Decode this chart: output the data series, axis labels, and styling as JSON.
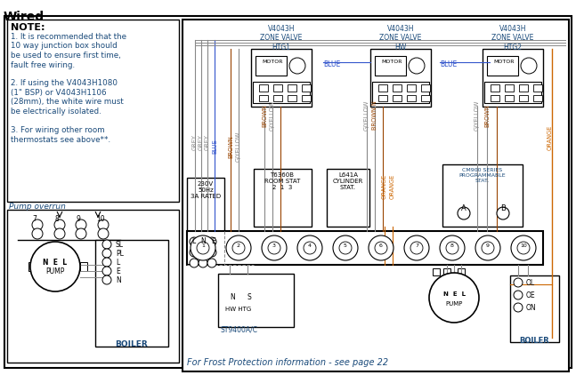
{
  "title": "Wired",
  "bg_color": "#ffffff",
  "note_header": "NOTE:",
  "note_lines": [
    "1. It is recommended that the",
    "10 way junction box should",
    "be used to ensure first time,",
    "fault free wiring.",
    "",
    "2. If using the V4043H1080",
    "(1\" BSP) or V4043H1106",
    "(28mm), the white wire must",
    "be electrically isolated.",
    "",
    "3. For wiring other room",
    "thermostats see above**."
  ],
  "pump_overrun": "Pump overrun",
  "frost_text": "For Frost Protection information - see page 22",
  "valve1_label": "V4043H\nZONE VALVE\nHTG1",
  "valve2_label": "V4043H\nZONE VALVE\nHW",
  "valve3_label": "V4043H\nZONE VALVE\nHTG2",
  "mains_label": "230V\n50Hz\n3A RATED",
  "room_stat_label": "T6360B\nROOM STAT\n2  1  3",
  "cyl_stat_label": "L641A\nCYLINDER\nSTAT.",
  "cm900_label": "CM900 SERIES\nPROGRAMMABLE\nSTAT.",
  "st9400_label": "ST9400A/C",
  "hw_htg_label": "HW HTG",
  "boiler_left_label": "BOILER",
  "boiler_right_label": "BOILER",
  "wire_grey": "#888888",
  "wire_blue": "#3355cc",
  "wire_brown": "#994400",
  "wire_gyellow": "#888888",
  "wire_orange": "#cc6600",
  "text_blue": "#1a4a7a",
  "text_orange": "#cc6600"
}
